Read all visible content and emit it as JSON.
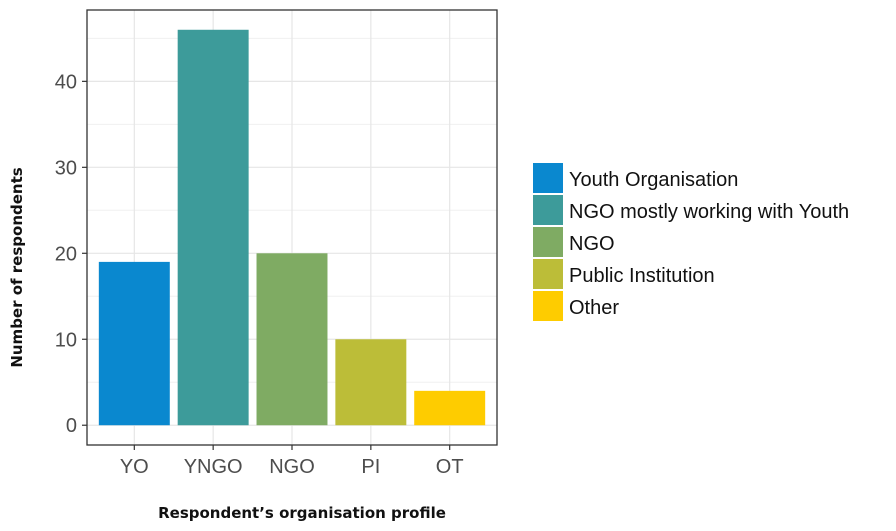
{
  "chart_data": {
    "type": "bar",
    "categories": [
      "YO",
      "YNGO",
      "NGO",
      "PI",
      "OT"
    ],
    "values": [
      19,
      46,
      20,
      10,
      4
    ],
    "colors": [
      "#0a88cf",
      "#3d9b9a",
      "#7fab63",
      "#bcbd38",
      "#fecc00"
    ],
    "title": "",
    "xlabel": "Respondent’s organisation profile",
    "ylabel": "Number of respondents",
    "ylim": [
      -2.3,
      48.3
    ],
    "yticks": [
      0,
      10,
      20,
      30,
      40
    ],
    "grid": true,
    "legend": {
      "position": "right",
      "entries": [
        {
          "label": "Youth Organisation",
          "color": "#0a88cf"
        },
        {
          "label": "NGO mostly working with Youth",
          "color": "#3d9b9a"
        },
        {
          "label": "NGO",
          "color": "#7fab63"
        },
        {
          "label": "Public Institution",
          "color": "#bcbd38"
        },
        {
          "label": "Other",
          "color": "#fecc00"
        }
      ]
    }
  }
}
